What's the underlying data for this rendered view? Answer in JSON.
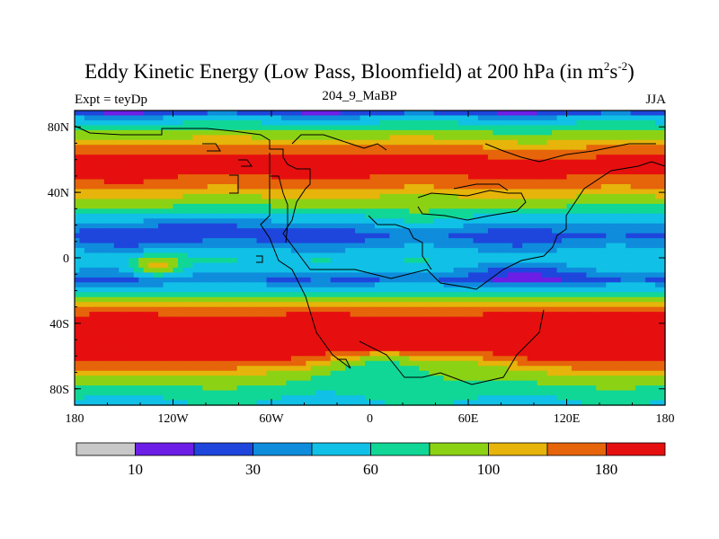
{
  "chart_data": {
    "type": "heatmap",
    "title_main": "Eddy Kinetic Energy (Low Pass, Bloomfield) at 200 hPa (in m",
    "title_sup1": "2",
    "title_mid": "s",
    "title_sup2": "-2",
    "title_end": ")",
    "left_label": "Expt = teyDp",
    "center_label": "204_9_MaBP",
    "right_label": "JJA",
    "x_range": [
      -180,
      180
    ],
    "y_range": [
      -90,
      90
    ],
    "x_ticks": [
      {
        "value": -180,
        "label": "180"
      },
      {
        "value": -120,
        "label": "120W"
      },
      {
        "value": -60,
        "label": "60W"
      },
      {
        "value": 0,
        "label": "0"
      },
      {
        "value": 60,
        "label": "60E"
      },
      {
        "value": 120,
        "label": "120E"
      },
      {
        "value": 180,
        "label": "180"
      }
    ],
    "y_ticks": [
      {
        "value": 80,
        "label": "80N"
      },
      {
        "value": 40,
        "label": "40N"
      },
      {
        "value": 0,
        "label": "0"
      },
      {
        "value": -40,
        "label": "40S"
      },
      {
        "value": -80,
        "label": "80S"
      }
    ],
    "colorbar": {
      "colors": [
        "#c8c8c8",
        "#6c1ee6",
        "#1e46dc",
        "#0f8cdc",
        "#10c0e6",
        "#10d796",
        "#8cd214",
        "#e6b40a",
        "#e6640a",
        "#e60f0f"
      ],
      "labels": [
        {
          "value": 10,
          "label": "10"
        },
        {
          "value": 30,
          "label": "30"
        },
        {
          "value": 60,
          "label": "60"
        },
        {
          "value": 100,
          "label": "100"
        },
        {
          "value": 180,
          "label": "180"
        }
      ]
    },
    "lat_profile": [
      {
        "lat": 90,
        "value": 6
      },
      {
        "lat": 85,
        "value": 35
      },
      {
        "lat": 75,
        "value": 70
      },
      {
        "lat": 68,
        "value": 110
      },
      {
        "lat": 62,
        "value": 140
      },
      {
        "lat": 55,
        "value": 150
      },
      {
        "lat": 48,
        "value": 125
      },
      {
        "lat": 40,
        "value": 90
      },
      {
        "lat": 30,
        "value": 55
      },
      {
        "lat": 22,
        "value": 32
      },
      {
        "lat": 14,
        "value": 16
      },
      {
        "lat": 8,
        "value": 24
      },
      {
        "lat": 0,
        "value": 42
      },
      {
        "lat": -8,
        "value": 30
      },
      {
        "lat": -14,
        "value": 18
      },
      {
        "lat": -22,
        "value": 55
      },
      {
        "lat": -30,
        "value": 100
      },
      {
        "lat": -38,
        "value": 150
      },
      {
        "lat": -46,
        "value": 200
      },
      {
        "lat": -54,
        "value": 210
      },
      {
        "lat": -60,
        "value": 160
      },
      {
        "lat": -66,
        "value": 110
      },
      {
        "lat": -72,
        "value": 75
      },
      {
        "lat": -80,
        "value": 55
      },
      {
        "lat": -90,
        "value": 40
      }
    ],
    "anomalies": [
      {
        "lon": -150,
        "lat": 53,
        "rlon": 16,
        "rlat": 5,
        "amp": 70
      },
      {
        "lon": -100,
        "lat": 18,
        "rlon": 45,
        "rlat": 8,
        "amp": -10
      },
      {
        "lon": 30,
        "lat": 25,
        "rlon": 25,
        "rlat": 8,
        "amp": 15
      },
      {
        "lon": -130,
        "lat": -5,
        "rlon": 15,
        "rlat": 6,
        "amp": 55
      },
      {
        "lon": 100,
        "lat": -10,
        "rlon": 45,
        "rlat": 7,
        "amp": -12
      },
      {
        "lon": -30,
        "lat": -5,
        "rlon": 20,
        "rlat": 8,
        "amp": 15
      },
      {
        "lon": 5,
        "lat": -60,
        "rlon": 45,
        "rlat": 12,
        "amp": -75
      },
      {
        "lon": 70,
        "lat": -60,
        "rlon": 30,
        "rlat": 10,
        "amp": -40
      },
      {
        "lon": 150,
        "lat": -38,
        "rlon": 30,
        "rlat": 8,
        "amp": 40
      },
      {
        "lon": 100,
        "lat": 65,
        "rlon": 40,
        "rlat": 8,
        "amp": -25
      }
    ]
  }
}
